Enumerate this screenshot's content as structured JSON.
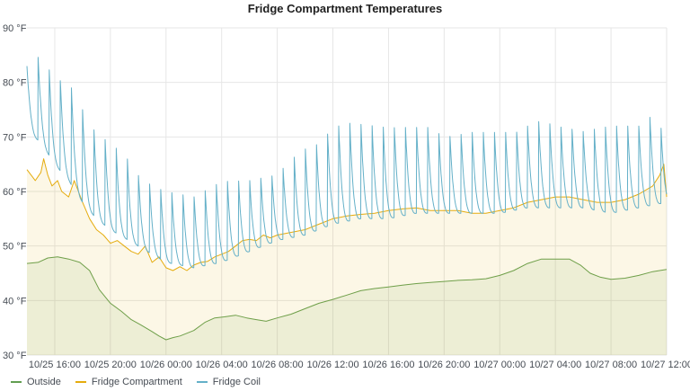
{
  "colors": {
    "outside": "#629e51",
    "fridge_compartment": "#e5ac0e",
    "fridge_coil": "#64b0c8",
    "grid": "#e6e6e6"
  },
  "chart_data": {
    "type": "line",
    "title": "Fridge Compartment Temperatures",
    "xlabel": "",
    "ylabel": "",
    "ylim": [
      30,
      90
    ],
    "y_ticks": [
      "30 °F",
      "40 °F",
      "50 °F",
      "60 °F",
      "70 °F",
      "80 °F",
      "90 °F"
    ],
    "x_range_hours": [
      0,
      46
    ],
    "x_ticks": [
      {
        "hour": 2,
        "label": "10/25 16:00"
      },
      {
        "hour": 6,
        "label": "10/25 20:00"
      },
      {
        "hour": 10,
        "label": "10/26 00:00"
      },
      {
        "hour": 14,
        "label": "10/26 04:00"
      },
      {
        "hour": 18,
        "label": "10/26 08:00"
      },
      {
        "hour": 22,
        "label": "10/26 12:00"
      },
      {
        "hour": 26,
        "label": "10/26 16:00"
      },
      {
        "hour": 30,
        "label": "10/26 20:00"
      },
      {
        "hour": 34,
        "label": "10/27 00:00"
      },
      {
        "hour": 38,
        "label": "10/27 04:00"
      },
      {
        "hour": 42,
        "label": "10/27 08:00"
      },
      {
        "hour": 46,
        "label": "10/27 12:00"
      }
    ],
    "grid": true,
    "legend_position": "bottom-left",
    "series": [
      {
        "name": "Outside",
        "key": "outside",
        "fill": true,
        "points": [
          [
            0,
            46.8
          ],
          [
            0.8,
            47
          ],
          [
            1.5,
            47.8
          ],
          [
            2.2,
            48
          ],
          [
            3,
            47.6
          ],
          [
            3.8,
            47
          ],
          [
            4.5,
            45.5
          ],
          [
            5.2,
            42
          ],
          [
            6,
            39.5
          ],
          [
            6.8,
            38
          ],
          [
            7.5,
            36.5
          ],
          [
            8.2,
            35.5
          ],
          [
            9,
            34.3
          ],
          [
            9.5,
            33.5
          ],
          [
            10,
            32.8
          ],
          [
            10.5,
            33.2
          ],
          [
            11,
            33.5
          ],
          [
            12,
            34.5
          ],
          [
            12.8,
            36
          ],
          [
            13.5,
            36.8
          ],
          [
            14.2,
            37
          ],
          [
            15,
            37.3
          ],
          [
            15.8,
            36.8
          ],
          [
            16.5,
            36.5
          ],
          [
            17.2,
            36.2
          ],
          [
            18,
            36.8
          ],
          [
            19,
            37.5
          ],
          [
            20,
            38.5
          ],
          [
            21,
            39.5
          ],
          [
            22,
            40.2
          ],
          [
            23,
            41
          ],
          [
            24,
            41.8
          ],
          [
            25,
            42.2
          ],
          [
            26,
            42.5
          ],
          [
            27,
            42.8
          ],
          [
            28,
            43.1
          ],
          [
            29,
            43.3
          ],
          [
            30,
            43.5
          ],
          [
            31,
            43.7
          ],
          [
            32,
            43.8
          ],
          [
            33,
            44
          ],
          [
            34,
            44.6
          ],
          [
            35,
            45.5
          ],
          [
            36,
            46.8
          ],
          [
            37,
            47.6
          ],
          [
            38,
            47.6
          ],
          [
            39,
            47.6
          ],
          [
            39.8,
            46.5
          ],
          [
            40.5,
            45
          ],
          [
            41.2,
            44.3
          ],
          [
            42,
            43.9
          ],
          [
            43,
            44.1
          ],
          [
            44,
            44.6
          ],
          [
            45,
            45.3
          ],
          [
            46,
            45.7
          ]
        ]
      },
      {
        "name": "Fridge Compartment",
        "key": "fridge_compartment",
        "fill": true,
        "points": [
          [
            0,
            64
          ],
          [
            0.6,
            62
          ],
          [
            1,
            63.5
          ],
          [
            1.2,
            66
          ],
          [
            1.5,
            63
          ],
          [
            1.8,
            61
          ],
          [
            2.2,
            62
          ],
          [
            2.5,
            60
          ],
          [
            3,
            59
          ],
          [
            3.4,
            62
          ],
          [
            3.7,
            60
          ],
          [
            4,
            58
          ],
          [
            4.5,
            55
          ],
          [
            5,
            53
          ],
          [
            5.5,
            52
          ],
          [
            6,
            50.5
          ],
          [
            6.5,
            51
          ],
          [
            7,
            50
          ],
          [
            7.5,
            49
          ],
          [
            8,
            48.5
          ],
          [
            8.5,
            50
          ],
          [
            9,
            47
          ],
          [
            9.5,
            48
          ],
          [
            10,
            46
          ],
          [
            10.5,
            45.5
          ],
          [
            11,
            46.2
          ],
          [
            11.5,
            45.5
          ],
          [
            12,
            46.5
          ],
          [
            12.5,
            47
          ],
          [
            13,
            47.2
          ],
          [
            13.5,
            48
          ],
          [
            14,
            48.5
          ],
          [
            14.5,
            49
          ],
          [
            15,
            50
          ],
          [
            15.5,
            51
          ],
          [
            16,
            51.2
          ],
          [
            16.5,
            51
          ],
          [
            17,
            52
          ],
          [
            17.5,
            51.5
          ],
          [
            18,
            52
          ],
          [
            19,
            52.5
          ],
          [
            20,
            53
          ],
          [
            21,
            54
          ],
          [
            22,
            55
          ],
          [
            23,
            55.5
          ],
          [
            24,
            55.8
          ],
          [
            25,
            56
          ],
          [
            26,
            56.5
          ],
          [
            27,
            56.8
          ],
          [
            28,
            57
          ],
          [
            29,
            56.5
          ],
          [
            30,
            56.5
          ],
          [
            31,
            56.5
          ],
          [
            32,
            56
          ],
          [
            33,
            56
          ],
          [
            34,
            56.5
          ],
          [
            35,
            57
          ],
          [
            36,
            58
          ],
          [
            37,
            58.5
          ],
          [
            38,
            59
          ],
          [
            39,
            59
          ],
          [
            40,
            58.5
          ],
          [
            41,
            58
          ],
          [
            42,
            58
          ],
          [
            43,
            58.5
          ],
          [
            44,
            59.5
          ],
          [
            45,
            61
          ],
          [
            45.5,
            63
          ],
          [
            45.8,
            65
          ],
          [
            46,
            59
          ]
        ]
      },
      {
        "name": "Fridge Coil",
        "key": "fridge_coil",
        "fill": false,
        "cycles": {
          "baseline": [
            [
              0,
              71
            ],
            [
              1,
              69
            ],
            [
              2,
              65
            ],
            [
              3,
              62
            ],
            [
              4,
              58
            ],
            [
              5,
              55
            ],
            [
              6,
              53
            ],
            [
              8,
              50
            ],
            [
              10,
              47
            ],
            [
              12,
              46
            ],
            [
              14,
              47
            ],
            [
              16,
              49
            ],
            [
              18,
              51
            ],
            [
              20,
              52
            ],
            [
              22,
              54
            ],
            [
              24,
              55
            ],
            [
              26,
              55
            ],
            [
              28,
              56
            ],
            [
              30,
              56
            ],
            [
              32,
              56
            ],
            [
              34,
              56
            ],
            [
              36,
              57
            ],
            [
              38,
              57
            ],
            [
              40,
              57
            ],
            [
              42,
              56
            ],
            [
              44,
              57
            ],
            [
              46,
              58
            ]
          ],
          "peak": [
            [
              0,
              83
            ],
            [
              1,
              85
            ],
            [
              2,
              80.5
            ],
            [
              3,
              80
            ],
            [
              4,
              75
            ],
            [
              5,
              72
            ],
            [
              6,
              70
            ],
            [
              7,
              68
            ],
            [
              8,
              64
            ],
            [
              9,
              62
            ],
            [
              10,
              61
            ],
            [
              12,
              60
            ],
            [
              14,
              63
            ],
            [
              16,
              63
            ],
            [
              18,
              64
            ],
            [
              19,
              67
            ],
            [
              20,
              69
            ],
            [
              21,
              70
            ],
            [
              22,
              73
            ],
            [
              23,
              74
            ],
            [
              26,
              73
            ],
            [
              29,
              73
            ],
            [
              30,
              71
            ],
            [
              32,
              72
            ],
            [
              34,
              72
            ],
            [
              36,
              72
            ],
            [
              37,
              73
            ],
            [
              38,
              72
            ],
            [
              40,
              71
            ],
            [
              42,
              72
            ],
            [
              44,
              72
            ],
            [
              45,
              74
            ],
            [
              46,
              70
            ]
          ],
          "period_hours": 0.8,
          "sharpness": 3
        }
      }
    ]
  }
}
